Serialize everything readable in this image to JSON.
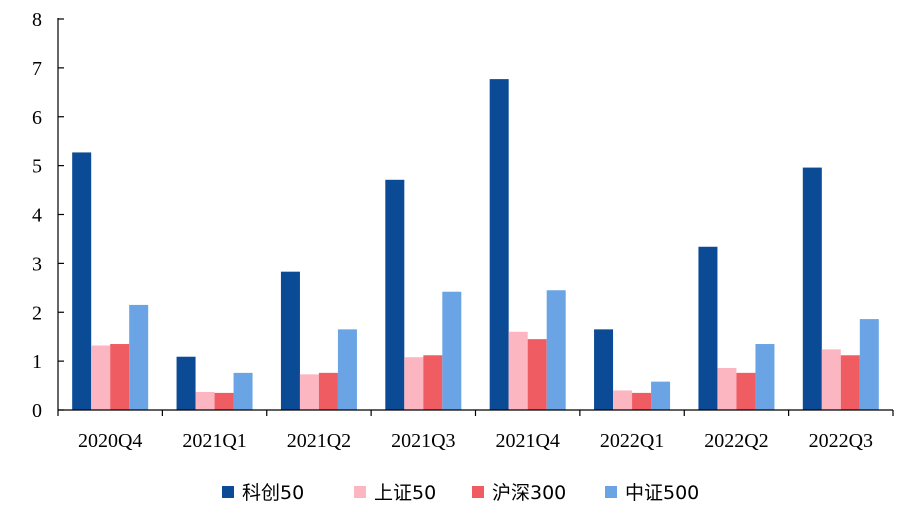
{
  "chart_data": {
    "type": "bar",
    "title": "",
    "xlabel": "",
    "ylabel": "",
    "ylim": [
      0,
      8
    ],
    "yticks": [
      0,
      1,
      2,
      3,
      4,
      5,
      6,
      7,
      8
    ],
    "grid": false,
    "legend_position": "bottom",
    "categories": [
      "2020Q4",
      "2021Q1",
      "2021Q2",
      "2021Q3",
      "2021Q4",
      "2022Q1",
      "2022Q2",
      "2022Q3"
    ],
    "series": [
      {
        "name": "科创50",
        "color": "#0b4a94",
        "values": [
          5.27,
          1.09,
          2.83,
          4.71,
          6.77,
          1.65,
          3.34,
          4.96
        ]
      },
      {
        "name": "上证50",
        "color": "#fbb6c1",
        "values": [
          1.32,
          0.37,
          0.73,
          1.08,
          1.6,
          0.4,
          0.86,
          1.24
        ]
      },
      {
        "name": "沪深300",
        "color": "#ef5d63",
        "values": [
          1.35,
          0.35,
          0.76,
          1.12,
          1.45,
          0.35,
          0.76,
          1.12
        ]
      },
      {
        "name": "中证500",
        "color": "#6aa4e4",
        "values": [
          2.15,
          0.76,
          1.65,
          2.42,
          2.45,
          0.58,
          1.35,
          1.86
        ]
      }
    ]
  }
}
